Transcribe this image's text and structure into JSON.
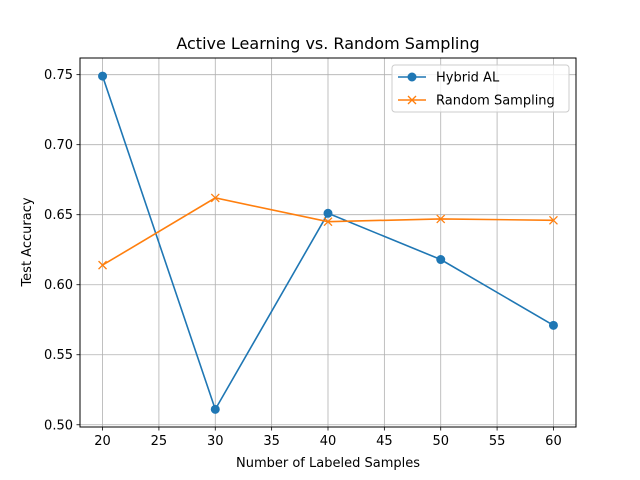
{
  "chart_data": {
    "type": "line",
    "title": "Active Learning vs. Random Sampling",
    "xlabel": "Number of Labeled Samples",
    "ylabel": "Test Accuracy",
    "xlim": [
      18,
      62
    ],
    "ylim": [
      0.4984,
      0.7619
    ],
    "xticks": [
      20,
      25,
      30,
      35,
      40,
      45,
      50,
      55,
      60
    ],
    "yticks": [
      0.5,
      0.55,
      0.6,
      0.65,
      0.7,
      0.75
    ],
    "ytick_labels": [
      "0.50",
      "0.55",
      "0.60",
      "0.65",
      "0.70",
      "0.75"
    ],
    "grid": true,
    "legend_position": "upper right",
    "x": [
      20,
      30,
      40,
      50,
      60
    ],
    "series": [
      {
        "name": "Hybrid AL",
        "marker": "circle",
        "color": "#1f77b4",
        "values": [
          0.749,
          0.511,
          0.651,
          0.618,
          0.571
        ]
      },
      {
        "name": "Random Sampling",
        "marker": "x",
        "color": "#ff7f0e",
        "values": [
          0.614,
          0.662,
          0.645,
          0.647,
          0.646
        ]
      }
    ]
  }
}
